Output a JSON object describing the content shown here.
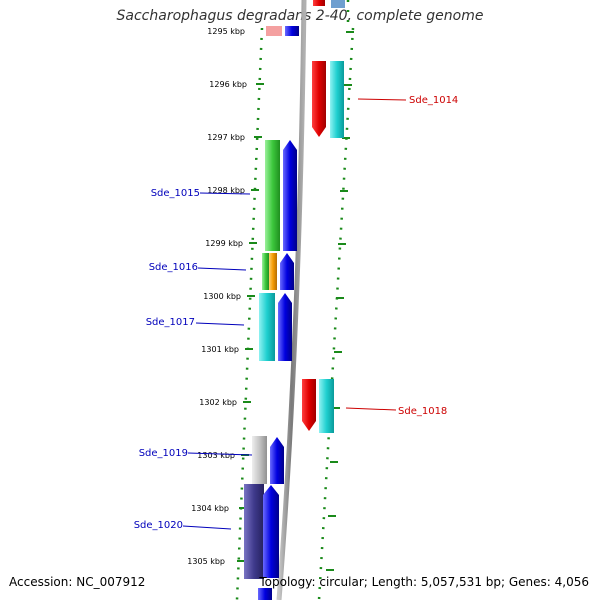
{
  "title": "Saccharophagus degradans 2-40, complete genome",
  "accession": "Accession: NC_007912",
  "topology": "Topology: circular; Length: 5,057,531 bp; Genes: 4,056",
  "kbp_labels": [
    "1295 kbp",
    "1296 kbp",
    "1297 kbp",
    "1298 kbp",
    "1299 kbp",
    "1300 kbp",
    "1301 kbp",
    "1302 kbp",
    "1303 kbp",
    "1304 kbp",
    "1305 kbp"
  ],
  "genes_left": [
    "Sde_1015",
    "Sde_1016",
    "Sde_1017",
    "Sde_1019",
    "Sde_1020"
  ],
  "genes_right": [
    "Sde_1014",
    "Sde_1018"
  ],
  "colors": {
    "red": "#e60000",
    "cyan": "#1ecfcf",
    "green": "#3dc83d",
    "orange": "#f59b00",
    "blue": "#0000e0",
    "gray": "#c4c4c4",
    "slate": "#3f3a8c",
    "tick": "#1a8a1a",
    "left_label": "#0000bb",
    "right_label": "#cc0000"
  }
}
